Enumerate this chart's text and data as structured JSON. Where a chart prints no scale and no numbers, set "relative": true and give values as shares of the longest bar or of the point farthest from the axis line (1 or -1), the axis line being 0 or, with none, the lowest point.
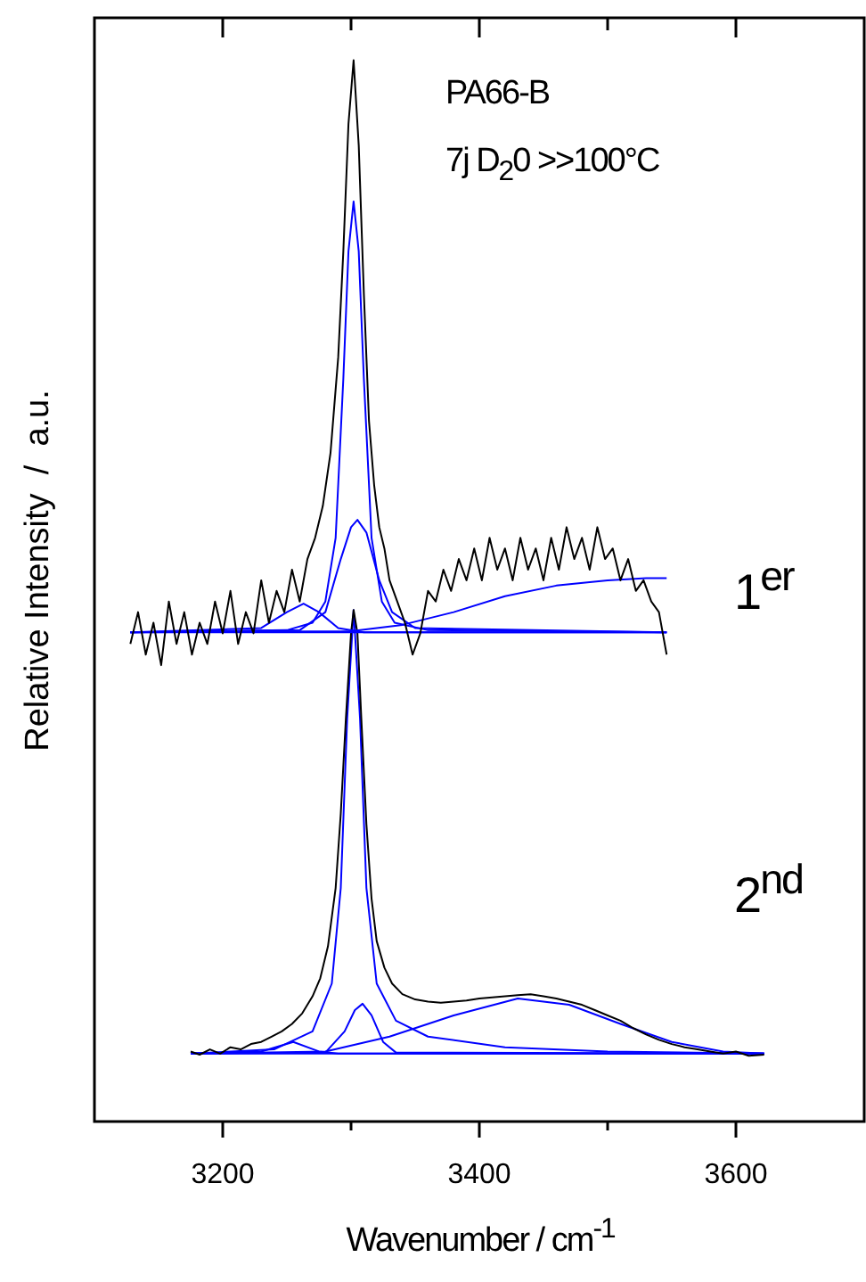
{
  "chart_data": {
    "type": "line",
    "relative": true,
    "marker": "none",
    "line_style": "solid",
    "legend": false,
    "grid": false,
    "xlabel": "Wavenumber / cm$^{-1}$",
    "ylabel": "Relative Intensity  /  a.u.",
    "xlim": [
      3100,
      3700
    ],
    "xticks": [
      3200,
      {
        "value": 3300,
        "label": null
      },
      3400,
      {
        "value": 3500,
        "label": null
      },
      3600
    ],
    "annotations": [
      "PA66-B",
      "7j D$_{2}$0 >>100°C",
      "1$^{er}$",
      "2$^{nd}$"
    ],
    "series": [
      {
        "color": "#000000",
        "x": [
          3128,
          3134,
          3140,
          3146,
          3152,
          3158,
          3164,
          3170,
          3176,
          3182,
          3188,
          3194,
          3200,
          3206,
          3212,
          3218,
          3224,
          3230,
          3236,
          3242,
          3248,
          3254,
          3260,
          3266,
          3272,
          3278,
          3284,
          3290,
          3294,
          3298,
          3302,
          3306,
          3310,
          3314,
          3318,
          3322,
          3326,
          3330,
          3336,
          3342,
          3348,
          3354,
          3360,
          3366,
          3372,
          3378,
          3384,
          3390,
          3396,
          3402,
          3408,
          3414,
          3420,
          3426,
          3432,
          3438,
          3444,
          3450,
          3456,
          3462,
          3468,
          3474,
          3480,
          3486,
          3492,
          3498,
          3504,
          3510,
          3516,
          3522,
          3528,
          3534,
          3540,
          3546
        ],
        "values": [
          0.45,
          0.48,
          0.44,
          0.47,
          0.43,
          0.49,
          0.45,
          0.48,
          0.44,
          0.47,
          0.45,
          0.49,
          0.46,
          0.5,
          0.45,
          0.48,
          0.46,
          0.51,
          0.47,
          0.5,
          0.48,
          0.52,
          0.49,
          0.53,
          0.55,
          0.58,
          0.63,
          0.72,
          0.82,
          0.94,
          1.0,
          0.92,
          0.78,
          0.66,
          0.6,
          0.56,
          0.54,
          0.51,
          0.49,
          0.47,
          0.44,
          0.46,
          0.5,
          0.49,
          0.52,
          0.5,
          0.53,
          0.51,
          0.54,
          0.51,
          0.55,
          0.52,
          0.54,
          0.51,
          0.55,
          0.52,
          0.54,
          0.51,
          0.55,
          0.52,
          0.56,
          0.53,
          0.55,
          0.52,
          0.56,
          0.53,
          0.54,
          0.51,
          0.53,
          0.5,
          0.51,
          0.49,
          0.48,
          0.44
        ]
      },
      {
        "color": "#0000ff",
        "x": [
          3128,
          3250,
          3270,
          3280,
          3288,
          3294,
          3298,
          3302,
          3306,
          3310,
          3316,
          3324,
          3334,
          3360,
          3546
        ],
        "values": [
          0.461,
          0.463,
          0.47,
          0.49,
          0.55,
          0.7,
          0.82,
          0.867,
          0.82,
          0.7,
          0.55,
          0.49,
          0.47,
          0.463,
          0.461
        ]
      },
      {
        "color": "#0000ff",
        "x": [
          3128,
          3260,
          3280,
          3292,
          3300,
          3305,
          3312,
          3322,
          3332,
          3350,
          3546
        ],
        "values": [
          0.461,
          0.463,
          0.48,
          0.53,
          0.56,
          0.567,
          0.555,
          0.51,
          0.48,
          0.465,
          0.461
        ]
      },
      {
        "color": "#0000ff",
        "x": [
          3128,
          3230,
          3250,
          3263,
          3275,
          3290,
          3310,
          3546
        ],
        "values": [
          0.461,
          0.465,
          0.48,
          0.488,
          0.48,
          0.465,
          0.461,
          0.461
        ]
      },
      {
        "color": "#0000ff",
        "x": [
          3128,
          3300,
          3340,
          3380,
          3420,
          3460,
          3500,
          3530,
          3546
        ],
        "values": [
          0.461,
          0.462,
          0.468,
          0.48,
          0.495,
          0.505,
          0.51,
          0.512,
          0.512
        ]
      },
      {
        "color": "#0000ff",
        "x": [
          3128,
          3546
        ],
        "values": [
          0.461,
          0.461
        ]
      },
      {
        "color": "#000000",
        "x": [
          3175,
          3182,
          3190,
          3198,
          3206,
          3214,
          3222,
          3230,
          3238,
          3246,
          3254,
          3262,
          3270,
          3276,
          3282,
          3288,
          3292,
          3296,
          3300,
          3302,
          3305,
          3308,
          3312,
          3316,
          3320,
          3326,
          3332,
          3340,
          3350,
          3360,
          3370,
          3380,
          3390,
          3400,
          3410,
          3420,
          3430,
          3440,
          3450,
          3460,
          3470,
          3480,
          3490,
          3500,
          3510,
          3520,
          3530,
          3540,
          3550,
          3560,
          3570,
          3580,
          3590,
          3600,
          3610,
          3622
        ],
        "values": [
          0.066,
          0.063,
          0.068,
          0.064,
          0.07,
          0.068,
          0.073,
          0.075,
          0.08,
          0.085,
          0.092,
          0.102,
          0.118,
          0.135,
          0.165,
          0.22,
          0.29,
          0.38,
          0.46,
          0.482,
          0.46,
          0.38,
          0.28,
          0.21,
          0.17,
          0.145,
          0.13,
          0.12,
          0.115,
          0.113,
          0.112,
          0.113,
          0.114,
          0.116,
          0.117,
          0.118,
          0.119,
          0.12,
          0.118,
          0.116,
          0.113,
          0.11,
          0.105,
          0.1,
          0.095,
          0.088,
          0.082,
          0.077,
          0.073,
          0.07,
          0.068,
          0.066,
          0.064,
          0.066,
          0.062,
          0.063
        ]
      },
      {
        "color": "#0000ff",
        "x": [
          3175,
          3240,
          3270,
          3285,
          3292,
          3297,
          3302,
          3307,
          3312,
          3320,
          3335,
          3360,
          3420,
          3500,
          3622
        ],
        "values": [
          0.064,
          0.068,
          0.085,
          0.13,
          0.22,
          0.38,
          0.482,
          0.38,
          0.22,
          0.13,
          0.095,
          0.08,
          0.07,
          0.066,
          0.064
        ]
      },
      {
        "color": "#0000ff",
        "x": [
          3175,
          3280,
          3295,
          3303,
          3309,
          3316,
          3325,
          3335,
          3622
        ],
        "values": [
          0.064,
          0.065,
          0.085,
          0.105,
          0.111,
          0.1,
          0.075,
          0.065,
          0.064
        ]
      },
      {
        "color": "#0000ff",
        "x": [
          3175,
          3230,
          3255,
          3275,
          3290,
          3622
        ],
        "values": [
          0.064,
          0.066,
          0.075,
          0.066,
          0.064,
          0.064
        ]
      },
      {
        "color": "#0000ff",
        "x": [
          3175,
          3280,
          3330,
          3380,
          3430,
          3470,
          3510,
          3550,
          3590,
          3622
        ],
        "values": [
          0.064,
          0.066,
          0.08,
          0.1,
          0.116,
          0.11,
          0.092,
          0.075,
          0.066,
          0.064
        ]
      },
      {
        "color": "#0000ff",
        "x": [
          3175,
          3622
        ],
        "values": [
          0.064,
          0.064
        ]
      }
    ]
  }
}
